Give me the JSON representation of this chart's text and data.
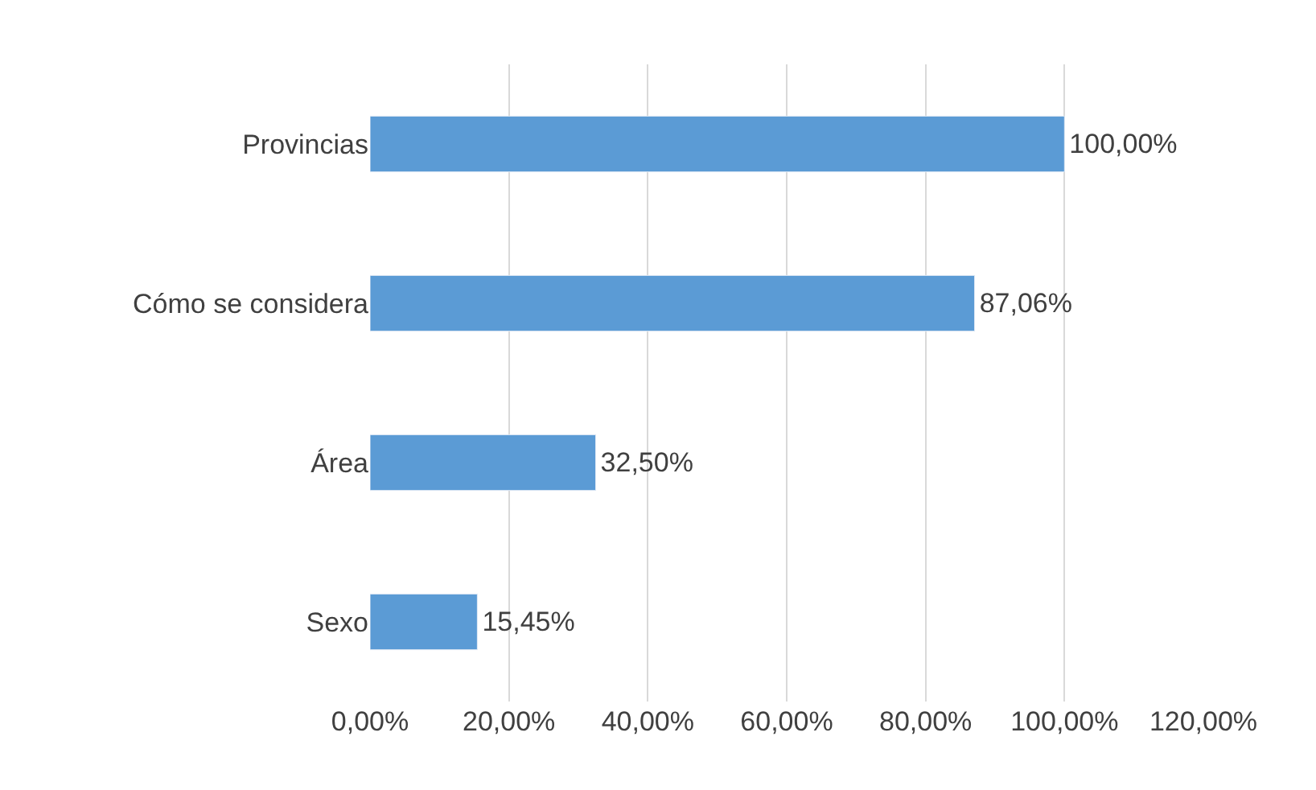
{
  "chart_data": {
    "type": "bar",
    "orientation": "horizontal",
    "categories": [
      "Provincias",
      "Cómo se considera",
      "Área",
      "Sexo"
    ],
    "values": [
      100,
      87.06,
      32.5,
      15.45
    ],
    "value_labels": [
      "100,00%",
      "87,06%",
      "32,50%",
      "15,45%"
    ],
    "color": "#5b9bd5",
    "xlim": [
      0,
      120
    ],
    "xticks": [
      {
        "value": 0,
        "label": "0,00%"
      },
      {
        "value": 20,
        "label": "20,00%"
      },
      {
        "value": 40,
        "label": "40,00%"
      },
      {
        "value": 60,
        "label": "60,00%"
      },
      {
        "value": 80,
        "label": "80,00%"
      },
      {
        "value": 100,
        "label": "100,00%"
      },
      {
        "value": 120,
        "label": "120,00%"
      }
    ],
    "grid": "x",
    "legend": false
  }
}
